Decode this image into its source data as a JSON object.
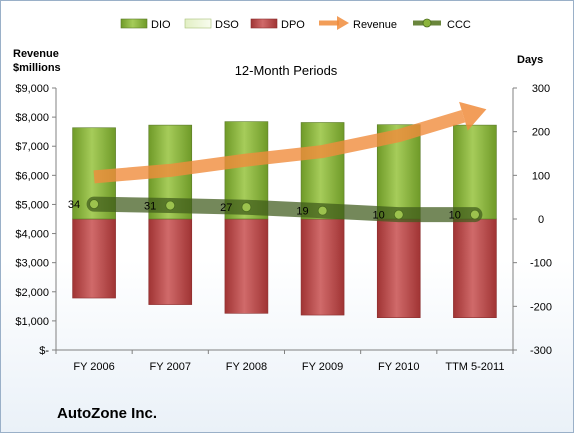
{
  "chart_data": {
    "type": "bar",
    "title": "12-Month Periods",
    "company": "AutoZone Inc.",
    "left_axis_title": [
      "Revenue",
      "$millions"
    ],
    "right_axis_title": "Days",
    "categories": [
      "FY 2006",
      "FY 2007",
      "FY 2008",
      "FY 2009",
      "FY 2010",
      "TTM 5-2011"
    ],
    "left_axis": {
      "range": [
        0,
        9000
      ],
      "ticks": [
        0,
        1000,
        2000,
        3000,
        4000,
        5000,
        6000,
        7000,
        8000,
        9000
      ],
      "tick_labels": [
        "$-",
        "$1,000",
        "$2,000",
        "$3,000",
        "$4,000",
        "$5,000",
        "$6,000",
        "$7,000",
        "$8,000",
        "$9,000"
      ]
    },
    "right_axis": {
      "range": [
        -300,
        300
      ],
      "ticks": [
        -300,
        -200,
        -100,
        0,
        100,
        200,
        300
      ],
      "tick_labels": [
        "-300",
        "-200",
        "-100",
        "0",
        "100",
        "200",
        "300"
      ]
    },
    "series": [
      {
        "name": "DIO",
        "axis": "right",
        "kind": "stacked-bar",
        "color": "#8cb43c",
        "values": [
          209,
          215,
          223,
          221,
          216,
          215
        ]
      },
      {
        "name": "DSO",
        "axis": "right",
        "kind": "stacked-bar",
        "color": "#eef6d8",
        "values": [
          0,
          0,
          0,
          0,
          0,
          0
        ]
      },
      {
        "name": "DPO",
        "axis": "right",
        "kind": "bar-negative",
        "color": "#b84a4a",
        "values": [
          -181,
          -196,
          -216,
          -220,
          -226,
          -226
        ]
      },
      {
        "name": "Revenue",
        "axis": "left",
        "kind": "line-arrow",
        "color": "#f08c3c",
        "values": [
          5948,
          6170,
          6523,
          6817,
          7362,
          8150
        ]
      },
      {
        "name": "CCC",
        "axis": "right",
        "kind": "line-markers",
        "color": "#5a7a28",
        "values": [
          34,
          31,
          27,
          19,
          10,
          10
        ],
        "labels": [
          "34",
          "31",
          "27",
          "19",
          "10",
          "10"
        ]
      }
    ],
    "grid": false,
    "legend_position": "top"
  }
}
